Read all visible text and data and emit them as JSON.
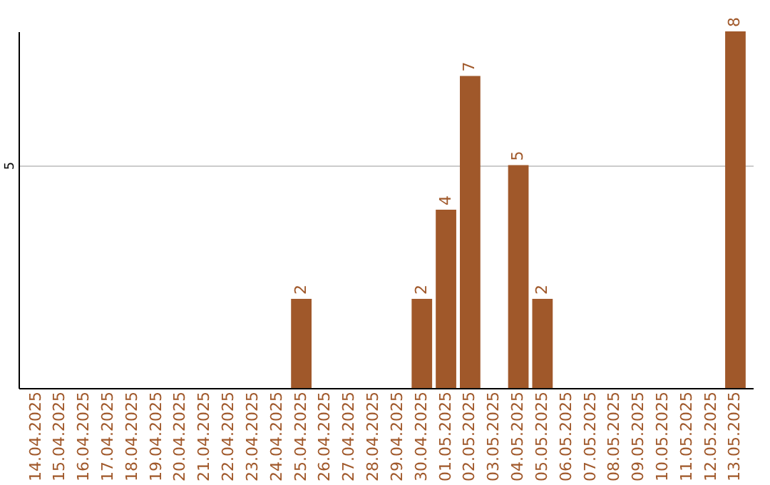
{
  "chart_data": {
    "type": "bar",
    "categories": [
      "14.04.2025",
      "15.04.2025",
      "16.04.2025",
      "17.04.2025",
      "18.04.2025",
      "19.04.2025",
      "20.04.2025",
      "21.04.2025",
      "22.04.2025",
      "23.04.2025",
      "24.04.2025",
      "25.04.2025",
      "26.04.2025",
      "27.04.2025",
      "28.04.2025",
      "29.04.2025",
      "30.04.2025",
      "01.05.2025",
      "02.05.2025",
      "03.05.2025",
      "04.05.2025",
      "05.05.2025",
      "06.05.2025",
      "07.05.2025",
      "08.05.2025",
      "09.05.2025",
      "10.05.2025",
      "11.05.2025",
      "12.05.2025",
      "13.05.2025"
    ],
    "values": [
      0,
      0,
      0,
      0,
      0,
      0,
      0,
      0,
      0,
      0,
      0,
      2,
      0,
      0,
      0,
      0,
      2,
      4,
      7,
      0,
      5,
      2,
      0,
      0,
      0,
      0,
      0,
      0,
      0,
      8
    ],
    "value_labels": [
      null,
      null,
      null,
      null,
      null,
      null,
      null,
      null,
      null,
      null,
      null,
      "2",
      null,
      null,
      null,
      null,
      "2",
      "4",
      "7",
      null,
      "5",
      "2",
      null,
      null,
      null,
      null,
      null,
      null,
      null,
      "8"
    ],
    "color": "#a0582a",
    "ylim": [
      0,
      8
    ],
    "yticks": [
      5
    ],
    "grid": "y"
  }
}
